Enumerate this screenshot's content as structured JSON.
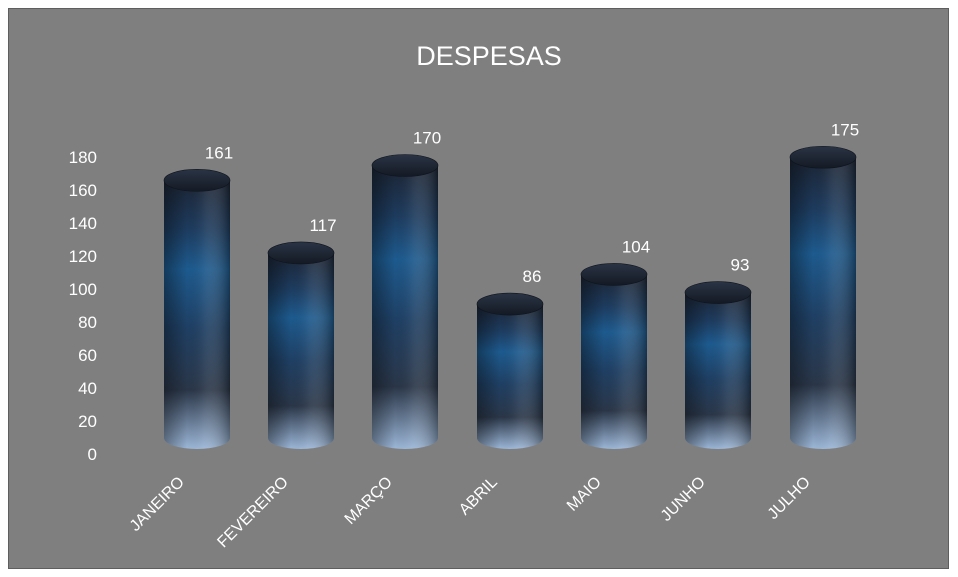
{
  "chart_data": {
    "type": "bar",
    "style": "3d-cylinder",
    "title": "DESPESAS",
    "xlabel": "",
    "ylabel": "",
    "categories": [
      "JANEIRO",
      "FEVEREIRO",
      "MARÇO",
      "ABRIL",
      "MAIO",
      "JUNHO",
      "JULHO"
    ],
    "series": [
      {
        "values": [
          161,
          117,
          170,
          86,
          104,
          93,
          175
        ]
      }
    ],
    "ylim": [
      0,
      180
    ],
    "yticks": [
      "0",
      "20",
      "40",
      "60",
      "80",
      "100",
      "120",
      "140",
      "160",
      "180"
    ],
    "grid": false,
    "legend": "none",
    "colors": {
      "background": "#7f7f7f",
      "bar_dark": "#1c2433",
      "bar_mid": "#1d5a8e",
      "bar_light": "#9cb7d8",
      "text": "#ffffff"
    }
  }
}
